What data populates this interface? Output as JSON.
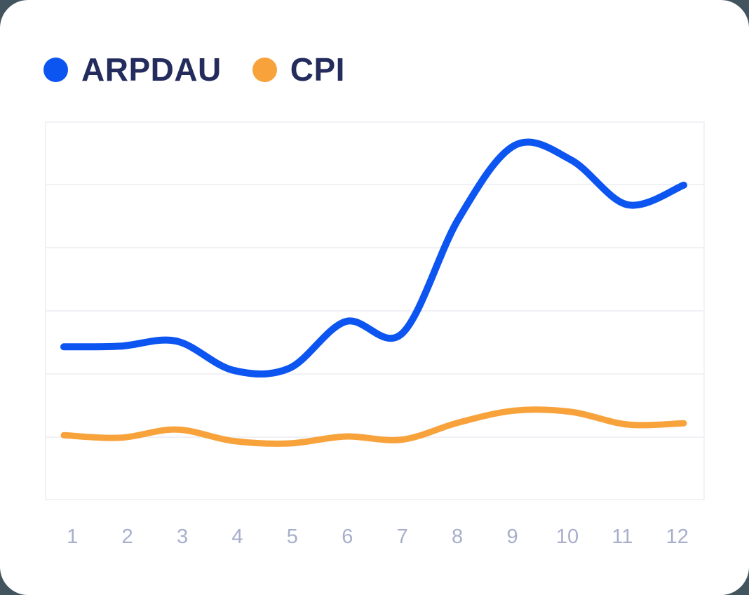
{
  "page": {
    "outer_background": "#42545D",
    "card_background": "#FFFFFF"
  },
  "legend": {
    "position": "top-left",
    "items": [
      {
        "label": "ARPDAU",
        "color": "#0D55F0"
      },
      {
        "label": "CPI",
        "color": "#F8A23B"
      }
    ]
  },
  "axis_style": {
    "tick_label_color": "#A7AFCC",
    "gridline_color": "#F1F1F5",
    "plot_border_color": "#F2F2F6"
  },
  "chart_data": {
    "type": "line",
    "x": [
      1,
      2,
      3,
      4,
      5,
      6,
      7,
      8,
      9,
      10,
      11,
      12
    ],
    "x_tick_labels": [
      "1",
      "2",
      "3",
      "4",
      "5",
      "6",
      "7",
      "8",
      "9",
      "10",
      "11",
      "12"
    ],
    "series": [
      {
        "name": "ARPDAU",
        "color": "#0D55F0",
        "values": [
          2.43,
          2.44,
          2.52,
          2.06,
          2.09,
          2.83,
          2.64,
          4.45,
          5.62,
          5.39,
          4.68,
          4.99
        ]
      },
      {
        "name": "CPI",
        "color": "#F8A23B",
        "values": [
          1.03,
          0.99,
          1.12,
          0.94,
          0.9,
          1.01,
          0.96,
          1.23,
          1.42,
          1.4,
          1.2,
          1.22
        ]
      }
    ],
    "title": "",
    "xlabel": "",
    "ylabel": "",
    "ylim": [
      0,
      6
    ],
    "y_gridline_step": 1,
    "y_axis_labels_visible": false,
    "grid": true,
    "line_style": "smooth",
    "legend_position": "top-left"
  }
}
